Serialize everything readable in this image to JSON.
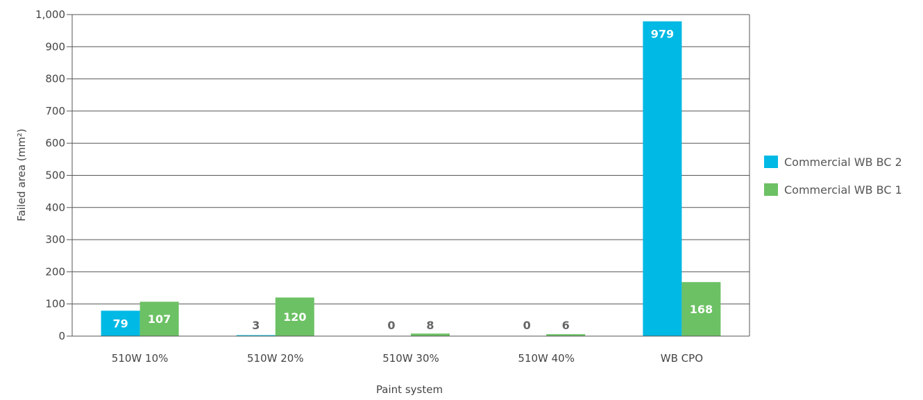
{
  "chart_data": {
    "type": "bar",
    "title": "",
    "xlabel": "Paint system",
    "ylabel": "Failed area (mm²)",
    "ylim": [
      0,
      1000
    ],
    "ytick_step": 100,
    "yticks": [
      "0",
      "100",
      "200",
      "300",
      "400",
      "500",
      "600",
      "700",
      "800",
      "900",
      "1,000"
    ],
    "grid": true,
    "legend_position": "right",
    "categories": [
      "510W 10%",
      "510W 20%",
      "510W 30%",
      "510W 40%",
      "WB CPO"
    ],
    "series": [
      {
        "name": "Commercial WB BC 2",
        "color": "#00B9E4",
        "values": [
          79,
          3,
          0,
          0,
          979
        ],
        "labels": [
          "79",
          "3",
          "0",
          "0",
          "979"
        ]
      },
      {
        "name": "Commercial WB BC 1",
        "color": "#6CC164",
        "values": [
          107,
          120,
          8,
          6,
          168
        ],
        "labels": [
          "107",
          "120",
          "8",
          "6",
          "168"
        ]
      }
    ]
  }
}
